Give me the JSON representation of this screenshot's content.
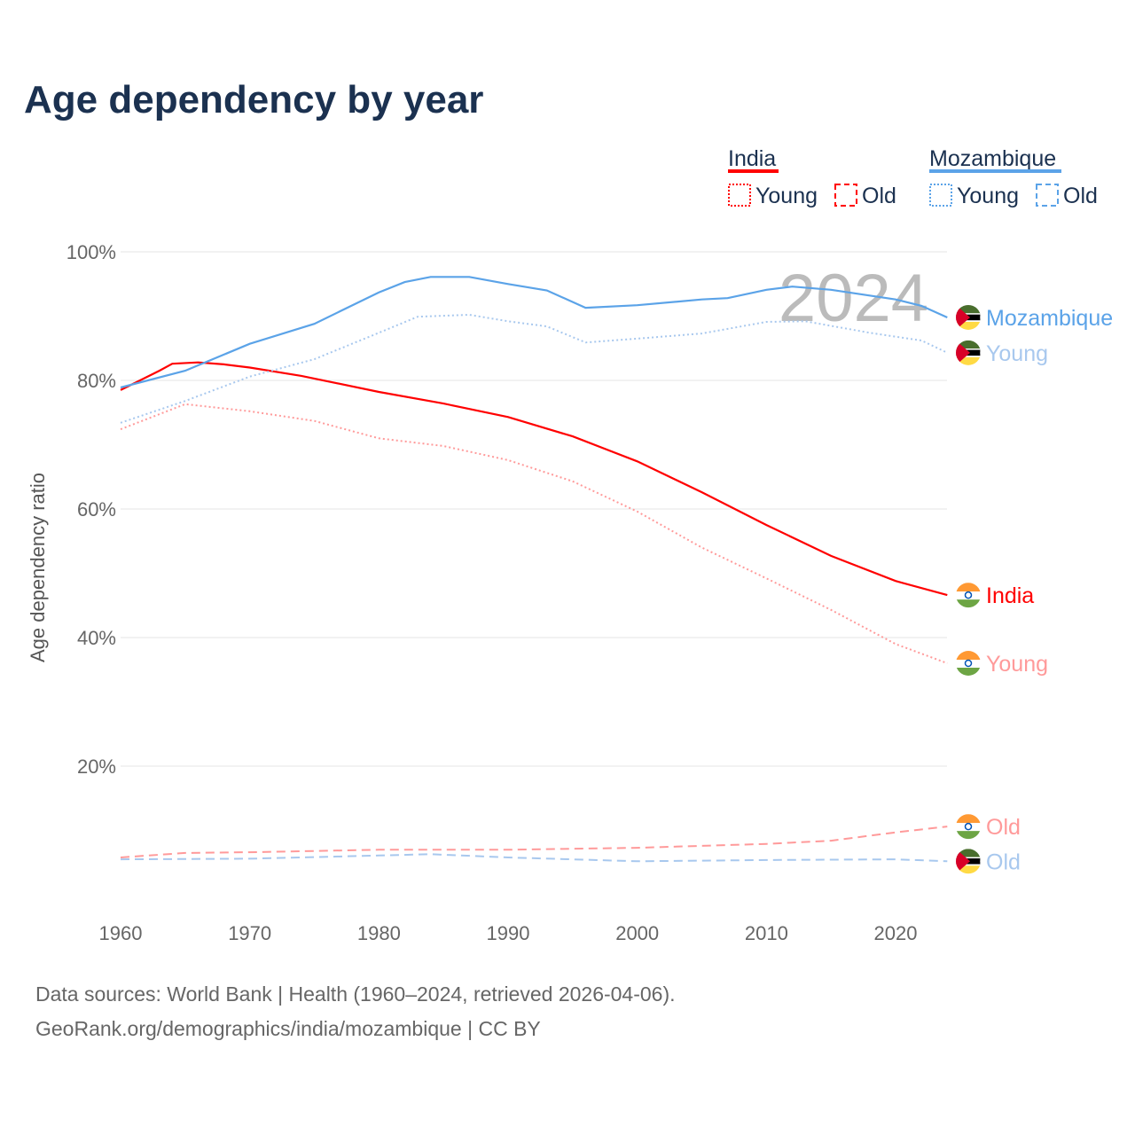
{
  "title": "Age dependency by year",
  "source_line1": "Data sources: World Bank | Health (1960–2024, retrieved 2026-04-06).",
  "source_line2": "GeoRank.org/demographics/india/mozambique | CC BY",
  "year_watermark": "2024",
  "legend": {
    "india": "India",
    "mozambique": "Mozambique",
    "young": "Young",
    "old": "Old"
  },
  "colors": {
    "india": "#ff0000",
    "india_light": "#ff9a9a",
    "moz": "#5ba3e8",
    "moz_light": "#a8c8ee"
  },
  "chart_data": {
    "type": "line",
    "title": "Age dependency by year",
    "xlabel": "",
    "ylabel": "Age dependency ratio",
    "xlim": [
      1960,
      2024
    ],
    "ylim": [
      0,
      100
    ],
    "xticks": [
      "1960",
      "1970",
      "1980",
      "1990",
      "2000",
      "2010",
      "2020"
    ],
    "yticks": [
      "20%",
      "40%",
      "60%",
      "80%",
      "100%"
    ],
    "grid": true,
    "series": [
      {
        "name": "India",
        "label": "India",
        "group": "india",
        "style": "solid",
        "x": [
          1960,
          1963,
          1964,
          1966,
          1968,
          1970,
          1974,
          1980,
          1985,
          1990,
          1995,
          2000,
          2005,
          2010,
          2015,
          2020,
          2024
        ],
        "y": [
          78.5,
          81.5,
          82.6,
          82.8,
          82.5,
          82,
          80.7,
          78.2,
          76.4,
          74.3,
          71.3,
          67.4,
          62.6,
          57.5,
          52.7,
          48.8,
          46.6
        ]
      },
      {
        "name": "India Young",
        "label": "Young",
        "group": "india",
        "style": "dotted",
        "x": [
          1960,
          1965,
          1970,
          1975,
          1980,
          1985,
          1990,
          1995,
          2000,
          2005,
          2010,
          2015,
          2020,
          2024
        ],
        "y": [
          72.4,
          76.3,
          75.2,
          73.7,
          71,
          69.8,
          67.6,
          64.3,
          59.6,
          54,
          49.2,
          44.3,
          39,
          36
        ]
      },
      {
        "name": "India Old",
        "label": "Old",
        "group": "india",
        "style": "dashed",
        "x": [
          1960,
          1965,
          1970,
          1980,
          1990,
          2000,
          2010,
          2015,
          2020,
          2024
        ],
        "y": [
          5.8,
          6.5,
          6.6,
          7,
          7,
          7.3,
          7.9,
          8.4,
          9.7,
          10.6
        ]
      },
      {
        "name": "Mozambique",
        "label": "Mozambique",
        "group": "moz",
        "style": "solid",
        "x": [
          1960,
          1965,
          1970,
          1975,
          1980,
          1982,
          1984,
          1987,
          1990,
          1993,
          1996,
          2000,
          2005,
          2007,
          2010,
          2012,
          2015,
          2020,
          2022,
          2024
        ],
        "y": [
          78.9,
          81.5,
          85.7,
          88.8,
          93.7,
          95.3,
          96.1,
          96.1,
          95,
          94,
          91.3,
          91.7,
          92.6,
          92.8,
          94.1,
          94.6,
          94.1,
          92.6,
          91.6,
          89.8
        ]
      },
      {
        "name": "Mozambique Young",
        "label": "Young",
        "group": "moz",
        "style": "dotted",
        "x": [
          1960,
          1965,
          1970,
          1975,
          1980,
          1983,
          1987,
          1990,
          1993,
          1996,
          2000,
          2005,
          2010,
          2013,
          2018,
          2020,
          2022,
          2024
        ],
        "y": [
          73.4,
          76.8,
          80.6,
          83.3,
          87.4,
          89.9,
          90.2,
          89.2,
          88.4,
          85.9,
          86.5,
          87.3,
          89.1,
          89.2,
          87.4,
          86.8,
          86.2,
          84.3
        ]
      },
      {
        "name": "Mozambique Old",
        "label": "Old",
        "group": "moz",
        "style": "dashed",
        "x": [
          1960,
          1970,
          1980,
          1984,
          1990,
          2000,
          2010,
          2020,
          2024
        ],
        "y": [
          5.5,
          5.6,
          6.1,
          6.3,
          5.8,
          5.2,
          5.4,
          5.5,
          5.2
        ]
      }
    ]
  }
}
